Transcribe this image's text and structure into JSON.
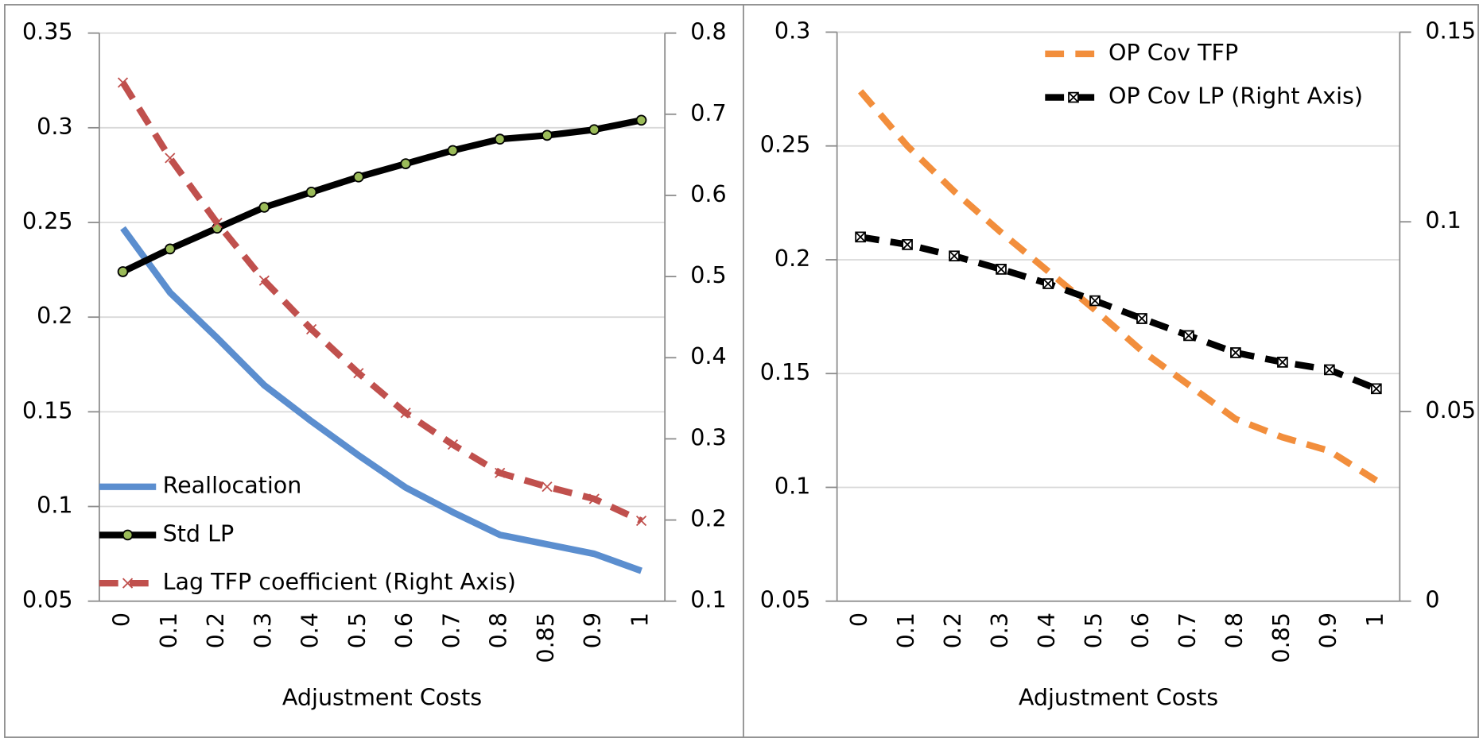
{
  "chart_data": [
    {
      "type": "line",
      "x_label": "Adjustment Costs",
      "categories": [
        "0",
        "0.1",
        "0.2",
        "0.3",
        "0.4",
        "0.5",
        "0.6",
        "0.7",
        "0.8",
        "0.85",
        "0.9",
        "1"
      ],
      "ylim": [
        0.05,
        0.35
      ],
      "yticks": [
        0.05,
        0.1,
        0.15,
        0.2,
        0.25,
        0.3,
        0.35
      ],
      "y2lim": [
        0.1,
        0.8
      ],
      "y2ticks": [
        0.1,
        0.2,
        0.3,
        0.4,
        0.5,
        0.6,
        0.7,
        0.8
      ],
      "grid": true,
      "legend": "lower left",
      "series": [
        {
          "name": "Reallocation",
          "color": "#5b8ecf",
          "dashed": false,
          "marker": "none",
          "values": [
            0.247,
            0.213,
            0.189,
            0.164,
            0.145,
            0.127,
            0.11,
            0.097,
            0.085,
            0.08,
            0.075,
            0.066
          ]
        },
        {
          "name": "Std LP",
          "color": "#000000",
          "dashed": false,
          "marker": "circle",
          "values": [
            0.224,
            0.236,
            0.247,
            0.258,
            0.266,
            0.274,
            0.281,
            0.288,
            0.294,
            0.296,
            0.299,
            0.304
          ]
        },
        {
          "name": "Lag TFP coefficient (Right Axis)",
          "color": "#c0504d",
          "dashed": true,
          "marker": "x",
          "axis": "y2",
          "values": [
            0.739,
            0.646,
            0.566,
            0.495,
            0.435,
            0.381,
            0.332,
            0.293,
            0.258,
            0.241,
            0.226,
            0.199
          ]
        }
      ]
    },
    {
      "type": "line",
      "x_label": "Adjustment Costs",
      "categories": [
        "0",
        "0.1",
        "0.2",
        "0.3",
        "0.4",
        "0.5",
        "0.6",
        "0.7",
        "0.8",
        "0.85",
        "0.9",
        "1"
      ],
      "ylim": [
        0.05,
        0.3
      ],
      "yticks": [
        0.05,
        0.1,
        0.15,
        0.2,
        0.25,
        0.3
      ],
      "y2lim": [
        0,
        0.15
      ],
      "y2ticks": [
        0,
        0.05,
        0.1,
        0.15
      ],
      "grid": true,
      "legend": "upper center",
      "series": [
        {
          "name": "OP Cov TFP",
          "color": "#f28e3c",
          "dashed": true,
          "marker": "none",
          "values": [
            0.274,
            0.25,
            0.23,
            0.212,
            0.195,
            0.178,
            0.16,
            0.145,
            0.13,
            0.122,
            0.116,
            0.103
          ]
        },
        {
          "name": "OP Cov LP (Right Axis)",
          "color": "#000000",
          "dashed": true,
          "marker": "boxx",
          "axis": "y2",
          "values": [
            0.096,
            0.094,
            0.091,
            0.0875,
            0.0837,
            0.0792,
            0.0745,
            0.07,
            0.0655,
            0.063,
            0.061,
            0.056
          ]
        }
      ]
    }
  ]
}
